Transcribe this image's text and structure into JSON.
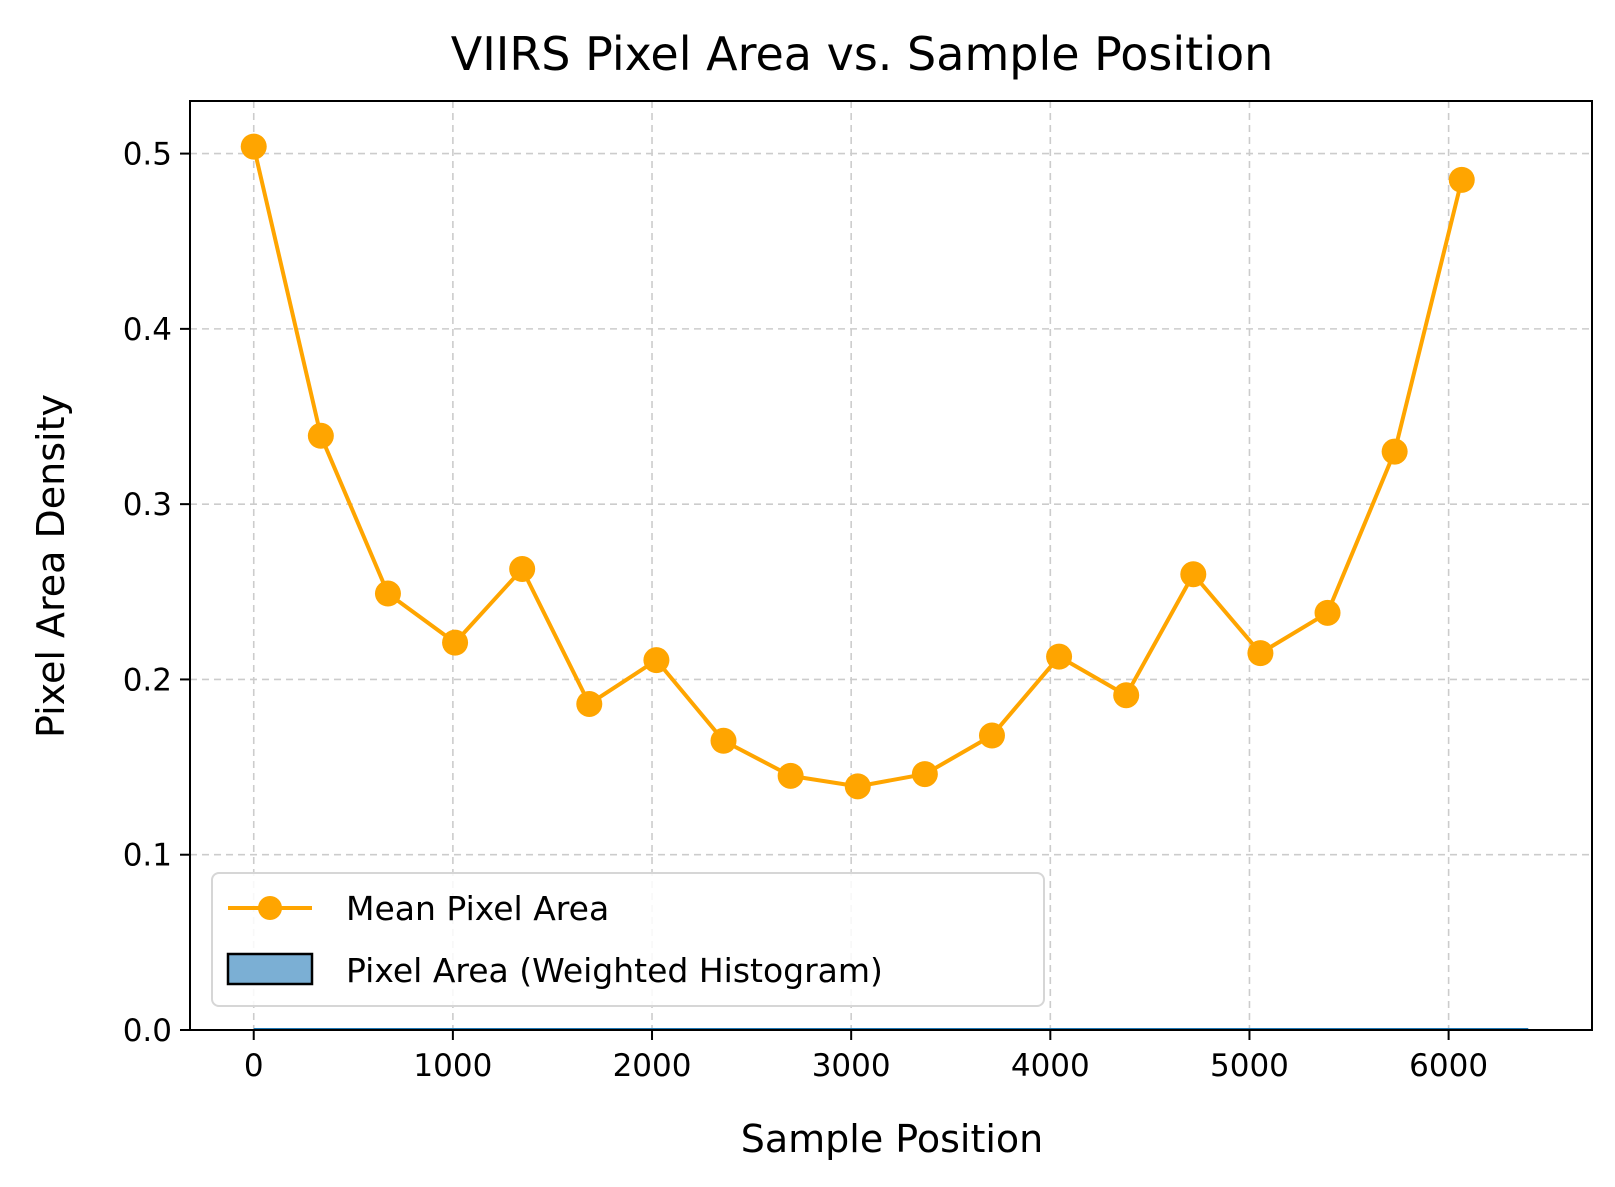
{
  "chart_data": {
    "type": "line",
    "title": "VIIRS Pixel Area vs. Sample Position",
    "xlabel": "Sample Position",
    "ylabel": "Pixel Area Density",
    "xlim": [
      -320,
      6720
    ],
    "ylim": [
      0.0,
      0.53
    ],
    "xticks": [
      0,
      1000,
      2000,
      3000,
      4000,
      5000,
      6000
    ],
    "xtick_labels": [
      "0",
      "1000",
      "2000",
      "3000",
      "4000",
      "5000",
      "6000"
    ],
    "yticks": [
      0.0,
      0.1,
      0.2,
      0.3,
      0.4,
      0.5
    ],
    "ytick_labels": [
      "0.0",
      "0.1",
      "0.2",
      "0.3",
      "0.4",
      "0.5"
    ],
    "grid": true,
    "legend_position": "lower-left",
    "series": [
      {
        "name": "Mean Pixel Area",
        "kind": "line-markers",
        "color": "#FFA500",
        "x": [
          0,
          337,
          674,
          1011,
          1348,
          1685,
          2022,
          2359,
          2696,
          3033,
          3370,
          3707,
          4044,
          4381,
          4718,
          5055,
          5392,
          5729,
          6066
        ],
        "y": [
          0.504,
          0.339,
          0.249,
          0.221,
          0.263,
          0.186,
          0.211,
          0.165,
          0.145,
          0.139,
          0.146,
          0.168,
          0.213,
          0.191,
          0.26,
          0.215,
          0.238,
          0.33,
          0.485
        ]
      },
      {
        "name": "Pixel Area (Weighted Histogram)",
        "kind": "histogram",
        "color": "#1f77b4",
        "fill_color": "#7BAFD4",
        "edge_color": "#000000",
        "x_range": [
          0,
          6400
        ],
        "value": 0.0005
      }
    ]
  }
}
